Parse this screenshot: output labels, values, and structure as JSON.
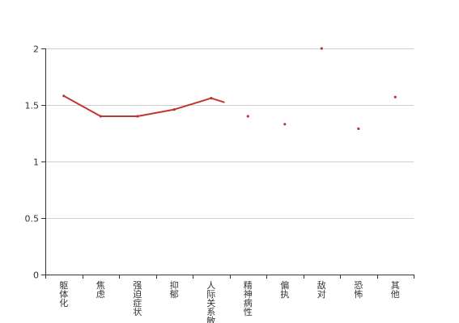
{
  "colors": {
    "series": "#c23531",
    "grid": "#cfcfcf",
    "axis": "#333333"
  },
  "chart_data": {
    "type": "line",
    "title": "",
    "xlabel": "",
    "ylabel": "",
    "grid": true,
    "legend": "none",
    "categories": [
      "躯体化",
      "焦虑",
      "强迫症状",
      "抑郁",
      "人际关系敏感",
      "精神病性",
      "偏执",
      "敌对",
      "恐怖",
      "其他"
    ],
    "ylim": [
      0,
      2
    ],
    "yticks": [
      0,
      0.5,
      1,
      1.5,
      2
    ],
    "ytick_labels": [
      "0",
      "0.5",
      "1",
      "1.5",
      "2"
    ],
    "series": [
      {
        "values": [
          1.58,
          1.4,
          1.4,
          1.46,
          1.56,
          1.4,
          1.33,
          2.0,
          1.29,
          1.57
        ],
        "connected_through_index": 4
      }
    ]
  }
}
